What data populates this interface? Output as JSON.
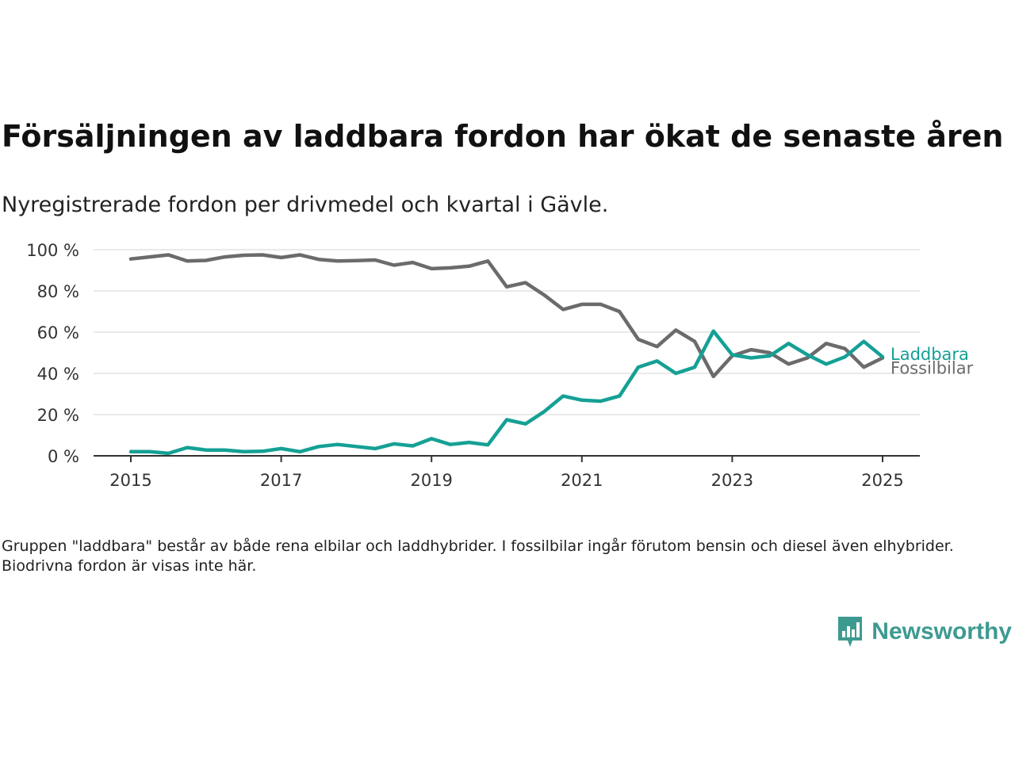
{
  "header": {
    "title": "Försäljningen av laddbara fordon har ökat de senaste åren",
    "subtitle": "Nyregistrerade fordon per drivmedel och kvartal i Gävle."
  },
  "footnote": "Gruppen \"laddbara\" består av både rena elbilar och laddhybrider. I fossilbilar ingår förutom bensin och diesel även elhybrider. Biodrivna fordon är visas inte här.",
  "brand": {
    "name": "Newsworthy",
    "icon": "bar-chart-speech-bubble-icon",
    "color": "#3d9a91"
  },
  "chart_data": {
    "type": "line",
    "x_unit": "quarter",
    "x": [
      "2015-Q1",
      "2015-Q2",
      "2015-Q3",
      "2015-Q4",
      "2016-Q1",
      "2016-Q2",
      "2016-Q3",
      "2016-Q4",
      "2017-Q1",
      "2017-Q2",
      "2017-Q3",
      "2017-Q4",
      "2018-Q1",
      "2018-Q2",
      "2018-Q3",
      "2018-Q4",
      "2019-Q1",
      "2019-Q2",
      "2019-Q3",
      "2019-Q4",
      "2020-Q1",
      "2020-Q2",
      "2020-Q3",
      "2020-Q4",
      "2021-Q1",
      "2021-Q2",
      "2021-Q3",
      "2021-Q4",
      "2022-Q1",
      "2022-Q2",
      "2022-Q3",
      "2022-Q4",
      "2023-Q1",
      "2023-Q2",
      "2023-Q3",
      "2023-Q4",
      "2024-Q1",
      "2024-Q2",
      "2024-Q3",
      "2024-Q4",
      "2025-Q1"
    ],
    "series": [
      {
        "name": "Fossilbilar",
        "color": "#6b6b6e",
        "values": [
          95.5,
          96.5,
          97.5,
          94.5,
          94.8,
          96.5,
          97.3,
          97.5,
          96.2,
          97.5,
          95.3,
          94.5,
          94.7,
          95.0,
          92.5,
          93.8,
          90.8,
          91.2,
          92.0,
          94.5,
          82.0,
          84.0,
          78.0,
          71.0,
          73.5,
          73.5,
          70.0,
          56.5,
          53.0,
          61.0,
          55.5,
          38.5,
          48.5,
          51.5,
          50.0,
          44.5,
          47.5,
          54.5,
          52.0,
          43.0,
          47.5
        ]
      },
      {
        "name": "Laddbara",
        "color": "#15a095",
        "values": [
          2.0,
          2.0,
          1.2,
          4.0,
          2.8,
          2.8,
          2.0,
          2.2,
          3.5,
          2.0,
          4.5,
          5.5,
          4.5,
          3.5,
          5.8,
          4.8,
          8.3,
          5.5,
          6.5,
          5.3,
          17.5,
          15.5,
          21.5,
          29.0,
          27.0,
          26.5,
          29.0,
          43.0,
          46.0,
          40.0,
          43.0,
          60.5,
          49.0,
          47.5,
          48.5,
          54.5,
          49.0,
          44.5,
          48.0,
          55.5,
          48.0
        ]
      }
    ],
    "ylim": [
      0,
      100
    ],
    "yticks": [
      0,
      20,
      40,
      60,
      80,
      100
    ],
    "ytick_labels": [
      "0 %",
      "20 %",
      "40 %",
      "60 %",
      "80 %",
      "100 %"
    ],
    "xticks": [
      "2015-Q1",
      "2017-Q1",
      "2019-Q1",
      "2021-Q1",
      "2023-Q1",
      "2025-Q1"
    ],
    "xtick_labels": [
      "2015",
      "2017",
      "2019",
      "2021",
      "2023",
      "2025"
    ],
    "grid": true,
    "axis_color": "#333333",
    "grid_color": "#dcdcdc",
    "legend": "direct labels at line ends"
  }
}
